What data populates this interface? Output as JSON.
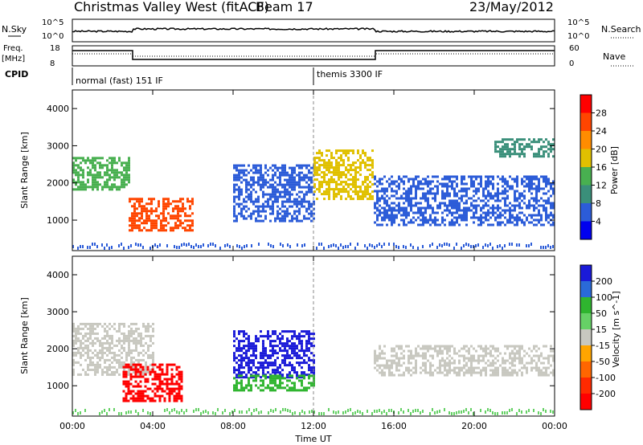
{
  "header": {
    "title": "Christmas Valley West (fitACF)",
    "beam": "Beam 17",
    "date": "23/May/2012"
  },
  "strips": {
    "nsky_label": "N.Sky",
    "nsky_ticks": [
      "10^5",
      "10^0"
    ],
    "nsearch_label": "N.Search",
    "nsearch_ticks": [
      "10^5",
      "10^0"
    ],
    "freq_label": "Freq.",
    "freq_unit": "[MHz]",
    "freq_ticks": [
      "18",
      "8"
    ],
    "nave_label": "Nave",
    "nave_ticks": [
      "60",
      "0"
    ],
    "cpid_label": "CPID",
    "cpid_segments": [
      "normal (fast) 151 IF",
      "themis 3300 IF"
    ]
  },
  "axes": {
    "ylabel": "Slant Range [km]",
    "xlabel": "Time UT",
    "xticks": [
      "00:00",
      "04:00",
      "08:00",
      "12:00",
      "16:00",
      "20:00",
      "00:00"
    ],
    "yticks": [
      "1000",
      "2000",
      "3000",
      "4000"
    ]
  },
  "chart_data": [
    {
      "type": "heatmap",
      "name": "power",
      "ylabel": "Slant Range [km]",
      "xlabel": "Time UT",
      "xlim": [
        0,
        24
      ],
      "ylim": [
        180,
        4500
      ],
      "colorbar": {
        "label": "Power [dB]",
        "ticks": [
          "4",
          "8",
          "12",
          "16",
          "20",
          "24",
          "28"
        ],
        "colors": [
          "#0000ee",
          "#2c5cd8",
          "#3a8f7a",
          "#48b050",
          "#e0c000",
          "#ff8c00",
          "#ff4500",
          "#ff0000"
        ]
      },
      "regions": [
        {
          "t": [
            0.0,
            2.8
          ],
          "r": [
            1800,
            2700
          ],
          "level": 16
        },
        {
          "t": [
            2.8,
            6.0
          ],
          "r": [
            700,
            1600
          ],
          "level": 28
        },
        {
          "t": [
            8.0,
            12.0
          ],
          "r": [
            1000,
            2500
          ],
          "level": 8
        },
        {
          "t": [
            12.0,
            15.0
          ],
          "r": [
            1600,
            2900
          ],
          "level": 20
        },
        {
          "t": [
            15.0,
            24.0
          ],
          "r": [
            900,
            2200
          ],
          "level": 8
        },
        {
          "t": [
            21.0,
            24.0
          ],
          "r": [
            2700,
            3200
          ],
          "level": 12
        }
      ]
    },
    {
      "type": "heatmap",
      "name": "velocity",
      "ylabel": "Slant Range [km]",
      "xlabel": "Time UT",
      "xlim": [
        0,
        24
      ],
      "ylim": [
        180,
        4500
      ],
      "colorbar": {
        "label": "Velocity [m s^-1]",
        "ticks": [
          "200",
          "100",
          "50",
          "15",
          "-15",
          "-50",
          "-100",
          "-200"
        ],
        "colors": [
          "#1a1ad8",
          "#2a6ad8",
          "#2fb52f",
          "#66d166",
          "#c8c8c0",
          "#ffa500",
          "#ff6600",
          "#ff2a00",
          "#ff0000"
        ]
      },
      "regions": [
        {
          "t": [
            0.0,
            4.0
          ],
          "r": [
            1300,
            2700
          ],
          "value": 0
        },
        {
          "t": [
            2.5,
            5.5
          ],
          "r": [
            600,
            1600
          ],
          "value": -200
        },
        {
          "t": [
            8.0,
            12.0
          ],
          "r": [
            1200,
            2500
          ],
          "value": 150
        },
        {
          "t": [
            8.0,
            12.0
          ],
          "r": [
            900,
            1300
          ],
          "value": 50
        },
        {
          "t": [
            15.0,
            24.0
          ],
          "r": [
            1300,
            2100
          ],
          "value": 0
        }
      ]
    }
  ]
}
